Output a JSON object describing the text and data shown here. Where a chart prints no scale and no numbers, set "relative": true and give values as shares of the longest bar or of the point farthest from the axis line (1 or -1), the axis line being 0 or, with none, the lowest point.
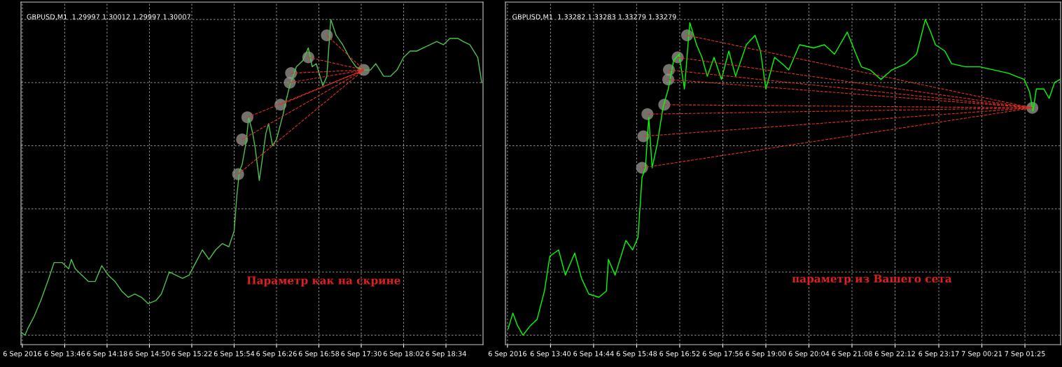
{
  "chart_data": [
    {
      "type": "line",
      "title": "GBPUSD,M1  1.29997 1.30012 1.29997 1.30007",
      "relative": true,
      "grid": true,
      "xlim": [
        "2016-09-06T13:13",
        "2016-09-06T19:02"
      ],
      "xticks": [
        {
          "value": "2016-09-06T13:14",
          "label": "6 Sep 2016"
        },
        {
          "value": "2016-09-06T13:46",
          "label": "6 Sep 13:46"
        },
        {
          "value": "2016-09-06T14:18",
          "label": "6 Sep 14:18"
        },
        {
          "value": "2016-09-06T14:50",
          "label": "6 Sep 14:50"
        },
        {
          "value": "2016-09-06T15:22",
          "label": "6 Sep 15:22"
        },
        {
          "value": "2016-09-06T15:54",
          "label": "6 Sep 15:54"
        },
        {
          "value": "2016-09-06T16:26",
          "label": "6 Sep 16:26"
        },
        {
          "value": "2016-09-06T16:58",
          "label": "6 Sep 16:58"
        },
        {
          "value": "2016-09-06T17:30",
          "label": "6 Sep 17:30"
        },
        {
          "value": "2016-09-06T18:02",
          "label": "6 Sep 18:02"
        },
        {
          "value": "2016-09-06T18:34",
          "label": "6 Sep 18:34"
        }
      ],
      "tick_labels": "x",
      "annotations": [
        "Параметр как на скрине"
      ],
      "series": [
        {
          "color": "#4cc24c",
          "line_style": "solid",
          "marker": "none",
          "x": [
            "2016-09-06T13:13",
            "2016-09-06T13:16",
            "2016-09-06T13:18",
            "2016-09-06T13:23",
            "2016-09-06T13:28",
            "2016-09-06T13:34",
            "2016-09-06T13:38",
            "2016-09-06T13:44",
            "2016-09-06T13:49",
            "2016-09-06T13:51",
            "2016-09-06T13:54",
            "2016-09-06T13:59",
            "2016-09-06T14:04",
            "2016-09-06T14:09",
            "2016-09-06T14:14",
            "2016-09-06T14:19",
            "2016-09-06T14:24",
            "2016-09-06T14:29",
            "2016-09-06T14:34",
            "2016-09-06T14:39",
            "2016-09-06T14:44",
            "2016-09-06T14:49",
            "2016-09-06T14:55",
            "2016-09-06T14:59",
            "2016-09-06T15:05",
            "2016-09-06T15:10",
            "2016-09-06T15:15",
            "2016-09-06T15:20",
            "2016-09-06T15:25",
            "2016-09-06T15:30",
            "2016-09-06T15:35",
            "2016-09-06T15:40",
            "2016-09-06T15:45",
            "2016-09-06T15:50",
            "2016-09-06T15:54",
            "2016-09-06T15:56",
            "2016-09-06T15:58",
            "2016-09-06T16:00",
            "2016-09-06T16:03",
            "2016-09-06T16:05",
            "2016-09-06T16:08",
            "2016-09-06T16:10",
            "2016-09-06T16:13",
            "2016-09-06T16:16",
            "2016-09-06T16:18",
            "2016-09-06T16:20",
            "2016-09-06T16:23",
            "2016-09-06T16:26",
            "2016-09-06T16:31",
            "2016-09-06T16:33",
            "2016-09-06T16:36",
            "2016-09-06T16:41",
            "2016-09-06T16:46",
            "2016-09-06T16:50",
            "2016-09-06T16:53",
            "2016-09-06T16:56",
            "2016-09-06T17:01",
            "2016-09-06T17:04",
            "2016-09-06T17:07",
            "2016-09-06T17:11",
            "2016-09-06T17:16",
            "2016-09-06T17:21",
            "2016-09-06T17:26",
            "2016-09-06T17:31",
            "2016-09-06T17:37",
            "2016-09-06T17:41",
            "2016-09-06T17:47",
            "2016-09-06T17:52",
            "2016-09-06T17:57",
            "2016-09-06T18:02",
            "2016-09-06T18:07",
            "2016-09-06T18:12",
            "2016-09-06T18:17",
            "2016-09-06T18:22",
            "2016-09-06T18:27",
            "2016-09-06T18:32",
            "2016-09-06T18:37",
            "2016-09-06T18:43",
            "2016-09-06T18:47",
            "2016-09-06T18:52",
            "2016-09-06T18:58",
            "2016-09-06T19:01"
          ],
          "values": [
            0.01,
            0.0,
            0.02,
            0.06,
            0.11,
            0.18,
            0.23,
            0.23,
            0.21,
            0.24,
            0.21,
            0.19,
            0.17,
            0.17,
            0.22,
            0.19,
            0.17,
            0.14,
            0.12,
            0.13,
            0.12,
            0.1,
            0.11,
            0.13,
            0.2,
            0.19,
            0.18,
            0.19,
            0.23,
            0.27,
            0.24,
            0.27,
            0.29,
            0.28,
            0.33,
            0.44,
            0.52,
            0.54,
            0.61,
            0.69,
            0.64,
            0.59,
            0.49,
            0.58,
            0.64,
            0.67,
            0.6,
            0.62,
            0.7,
            0.74,
            0.79,
            0.85,
            0.87,
            0.91,
            0.85,
            0.86,
            0.79,
            0.82,
            1.0,
            0.95,
            0.92,
            0.88,
            0.85,
            0.84,
            0.84,
            0.86,
            0.82,
            0.82,
            0.84,
            0.88,
            0.9,
            0.9,
            0.91,
            0.92,
            0.93,
            0.92,
            0.94,
            0.94,
            0.93,
            0.92,
            0.88,
            0.8
          ]
        },
        {
          "type": "line",
          "color": "#e03020",
          "line_style": "dashed",
          "marker": "none",
          "x": [
            "2016-09-06T15:57",
            "2016-09-06T17:32"
          ],
          "values": [
            0.51,
            0.84
          ]
        },
        {
          "type": "line",
          "color": "#e03020",
          "line_style": "dashed",
          "marker": "none",
          "x": [
            "2016-09-06T16:00",
            "2016-09-06T17:32"
          ],
          "values": [
            0.62,
            0.84
          ]
        },
        {
          "type": "line",
          "color": "#e03020",
          "line_style": "dashed",
          "marker": "none",
          "x": [
            "2016-09-06T16:04",
            "2016-09-06T17:32"
          ],
          "values": [
            0.69,
            0.84
          ]
        },
        {
          "type": "line",
          "color": "#e03020",
          "line_style": "dashed",
          "marker": "none",
          "x": [
            "2016-09-06T16:29",
            "2016-09-06T17:32"
          ],
          "values": [
            0.73,
            0.84
          ]
        },
        {
          "type": "line",
          "color": "#e03020",
          "line_style": "dashed",
          "marker": "none",
          "x": [
            "2016-09-06T16:36",
            "2016-09-06T17:32"
          ],
          "values": [
            0.8,
            0.84
          ]
        },
        {
          "type": "line",
          "color": "#e03020",
          "line_style": "dashed",
          "marker": "none",
          "x": [
            "2016-09-06T16:37",
            "2016-09-06T17:32"
          ],
          "values": [
            0.83,
            0.84
          ]
        },
        {
          "type": "line",
          "color": "#e03020",
          "line_style": "dashed",
          "marker": "none",
          "x": [
            "2016-09-06T16:50",
            "2016-09-06T17:32"
          ],
          "values": [
            0.88,
            0.84
          ]
        },
        {
          "type": "line",
          "color": "#e03020",
          "line_style": "dashed",
          "marker": "none",
          "x": [
            "2016-09-06T17:04",
            "2016-09-06T17:32"
          ],
          "values": [
            0.95,
            0.84
          ]
        },
        {
          "type": "scatter",
          "color": "#9b9590",
          "marker": "circle",
          "x": [
            "2016-09-06T15:57",
            "2016-09-06T16:00",
            "2016-09-06T16:04",
            "2016-09-06T16:29",
            "2016-09-06T16:36",
            "2016-09-06T16:37",
            "2016-09-06T16:50",
            "2016-09-06T17:04",
            "2016-09-06T17:32"
          ],
          "values": [
            0.51,
            0.62,
            0.69,
            0.73,
            0.8,
            0.83,
            0.88,
            0.95,
            0.84
          ]
        }
      ]
    },
    {
      "type": "line",
      "title": "GBPUSD,M1  1.33282 1.33283 1.33279 1.33279",
      "relative": true,
      "grid": true,
      "xlim": [
        "2016-09-06T12:33",
        "2016-09-07T02:18"
      ],
      "xticks": [
        {
          "value": "2016-09-06T12:36",
          "label": "6 Sep 2016"
        },
        {
          "value": "2016-09-06T13:40",
          "label": "6 Sep 13:40"
        },
        {
          "value": "2016-09-06T14:44",
          "label": "6 Sep 14:44"
        },
        {
          "value": "2016-09-06T15:48",
          "label": "6 Sep 15:48"
        },
        {
          "value": "2016-09-06T16:52",
          "label": "6 Sep 16:52"
        },
        {
          "value": "2016-09-06T17:56",
          "label": "6 Sep 17:56"
        },
        {
          "value": "2016-09-06T19:00",
          "label": "6 Sep 19:00"
        },
        {
          "value": "2016-09-06T20:04",
          "label": "6 Sep 20:04"
        },
        {
          "value": "2016-09-06T21:08",
          "label": "6 Sep 21:08"
        },
        {
          "value": "2016-09-06T22:12",
          "label": "6 Sep 22:12"
        },
        {
          "value": "2016-09-06T23:17",
          "label": "6 Sep 23:17"
        },
        {
          "value": "2016-09-07T00:21",
          "label": "7 Sep 00:21"
        },
        {
          "value": "2016-09-07T01:25",
          "label": "7 Sep 01:25"
        }
      ],
      "tick_labels": "x",
      "annotations": [
        "параметр из Вашего сета"
      ],
      "series": [
        {
          "color": "#00ff00",
          "line_style": "solid",
          "marker": "none",
          "x": [
            "2016-09-06T12:37",
            "2016-09-06T12:44",
            "2016-09-06T12:51",
            "2016-09-06T12:59",
            "2016-09-06T13:10",
            "2016-09-06T13:20",
            "2016-09-06T13:31",
            "2016-09-06T13:39",
            "2016-09-06T13:52",
            "2016-09-06T14:02",
            "2016-09-06T14:16",
            "2016-09-06T14:26",
            "2016-09-06T14:37",
            "2016-09-06T14:52",
            "2016-09-06T15:03",
            "2016-09-06T15:06",
            "2016-09-06T15:16",
            "2016-09-06T15:32",
            "2016-09-06T15:42",
            "2016-09-06T15:50",
            "2016-09-06T15:56",
            "2016-09-06T16:01",
            "2016-09-06T16:06",
            "2016-09-06T16:11",
            "2016-09-06T16:19",
            "2016-09-06T16:27",
            "2016-09-06T16:35",
            "2016-09-06T16:43",
            "2016-09-06T16:51",
            "2016-09-06T16:59",
            "2016-09-06T17:07",
            "2016-09-06T17:17",
            "2016-09-06T17:25",
            "2016-09-06T17:33",
            "2016-09-06T17:43",
            "2016-09-06T17:54",
            "2016-09-06T18:05",
            "2016-09-06T18:15",
            "2016-09-06T18:31",
            "2016-09-06T18:44",
            "2016-09-06T18:52",
            "2016-09-06T19:00",
            "2016-09-06T19:13",
            "2016-09-06T19:24",
            "2016-09-06T19:34",
            "2016-09-06T19:50",
            "2016-09-06T20:11",
            "2016-09-06T20:27",
            "2016-09-06T20:42",
            "2016-09-06T21:01",
            "2016-09-06T21:14",
            "2016-09-06T21:22",
            "2016-09-06T21:35",
            "2016-09-06T21:51",
            "2016-09-06T22:07",
            "2016-09-06T22:28",
            "2016-09-06T22:44",
            "2016-09-06T22:57",
            "2016-09-06T23:05",
            "2016-09-06T23:12",
            "2016-09-06T23:26",
            "2016-09-06T23:36",
            "2016-09-06T23:57",
            "2016-09-07T00:18",
            "2016-09-07T00:39",
            "2016-09-07T01:00",
            "2016-09-07T01:24",
            "2016-09-07T01:32",
            "2016-09-07T01:37",
            "2016-09-07T01:42",
            "2016-09-07T01:53",
            "2016-09-07T02:01",
            "2016-09-07T02:09",
            "2016-09-07T02:17"
          ],
          "values": [
            0.02,
            0.07,
            0.03,
            0.0,
            0.03,
            0.05,
            0.14,
            0.25,
            0.27,
            0.19,
            0.26,
            0.18,
            0.13,
            0.12,
            0.14,
            0.24,
            0.19,
            0.3,
            0.27,
            0.31,
            0.5,
            0.53,
            0.69,
            0.53,
            0.61,
            0.72,
            0.78,
            0.87,
            0.89,
            0.78,
            0.99,
            0.92,
            0.88,
            0.82,
            0.88,
            0.81,
            0.9,
            0.82,
            0.92,
            0.95,
            0.9,
            0.78,
            0.88,
            0.86,
            0.84,
            0.92,
            0.91,
            0.92,
            0.89,
            0.96,
            0.89,
            0.85,
            0.84,
            0.81,
            0.84,
            0.86,
            0.89,
            1.0,
            0.96,
            0.92,
            0.9,
            0.86,
            0.85,
            0.85,
            0.84,
            0.83,
            0.81,
            0.77,
            0.71,
            0.78,
            0.78,
            0.75,
            0.8,
            0.81
          ]
        },
        {
          "type": "line",
          "color": "#e03020",
          "line_style": "dashed",
          "marker": "none",
          "x": [
            "2016-09-06T15:56",
            "2016-09-07T01:36"
          ],
          "values": [
            0.53,
            0.72
          ]
        },
        {
          "type": "line",
          "color": "#e03020",
          "line_style": "dashed",
          "marker": "none",
          "x": [
            "2016-09-06T15:58",
            "2016-09-07T01:36"
          ],
          "values": [
            0.63,
            0.72
          ]
        },
        {
          "type": "line",
          "color": "#e03020",
          "line_style": "dashed",
          "marker": "none",
          "x": [
            "2016-09-06T16:04",
            "2016-09-07T01:36"
          ],
          "values": [
            0.7,
            0.72
          ]
        },
        {
          "type": "line",
          "color": "#e03020",
          "line_style": "dashed",
          "marker": "none",
          "x": [
            "2016-09-06T16:29",
            "2016-09-07T01:36"
          ],
          "values": [
            0.73,
            0.72
          ]
        },
        {
          "type": "line",
          "color": "#e03020",
          "line_style": "dashed",
          "marker": "none",
          "x": [
            "2016-09-06T16:35",
            "2016-09-07T01:36"
          ],
          "values": [
            0.81,
            0.72
          ]
        },
        {
          "type": "line",
          "color": "#e03020",
          "line_style": "dashed",
          "marker": "none",
          "x": [
            "2016-09-06T16:36",
            "2016-09-07T01:36"
          ],
          "values": [
            0.84,
            0.72
          ]
        },
        {
          "type": "line",
          "color": "#e03020",
          "line_style": "dashed",
          "marker": "none",
          "x": [
            "2016-09-06T16:49",
            "2016-09-07T01:36"
          ],
          "values": [
            0.88,
            0.72
          ]
        },
        {
          "type": "line",
          "color": "#e03020",
          "line_style": "dashed",
          "marker": "none",
          "x": [
            "2016-09-06T17:03",
            "2016-09-07T01:36"
          ],
          "values": [
            0.95,
            0.72
          ]
        },
        {
          "type": "scatter",
          "color": "#9b9590",
          "marker": "circle",
          "x": [
            "2016-09-06T15:56",
            "2016-09-06T15:58",
            "2016-09-06T16:04",
            "2016-09-06T16:29",
            "2016-09-06T16:35",
            "2016-09-06T16:36",
            "2016-09-06T16:49",
            "2016-09-06T17:03",
            "2016-09-07T01:36"
          ],
          "values": [
            0.53,
            0.63,
            0.7,
            0.73,
            0.81,
            0.84,
            0.88,
            0.95,
            0.72
          ]
        }
      ]
    }
  ]
}
